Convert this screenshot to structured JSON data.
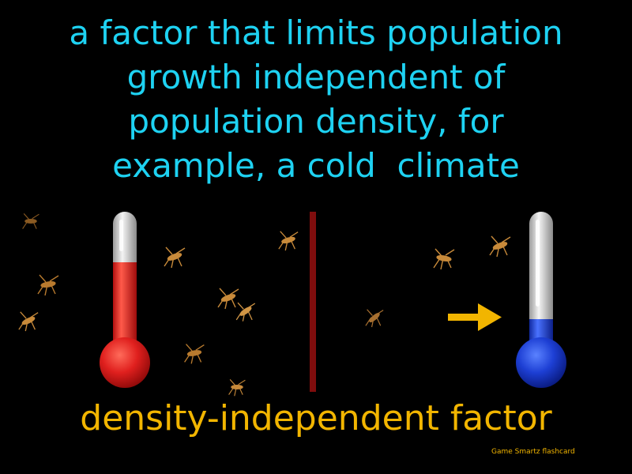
{
  "flashcard": {
    "definition_lines": [
      "a factor that limits population",
      "growth independent of",
      "population density, for",
      "example, a cold  climate"
    ],
    "term": "density-independent factor",
    "credit": "Game Smartz  flashcard"
  },
  "illustration": {
    "left_thermometer": {
      "icon": "warm-thermometer-icon",
      "fill_level": 0.55
    },
    "right_thermometer": {
      "icon": "cold-thermometer-icon",
      "fill_level": 0.2
    },
    "arrow": {
      "icon": "right-arrow-icon",
      "direction": "right"
    },
    "insects": {
      "icon": "mosquito-icon"
    }
  },
  "colors": {
    "definition_text": "#1ed2f2",
    "term_text": "#f2b500",
    "background": "#000000",
    "warm_liquid": "#e0201e",
    "cold_liquid": "#1d3fd4",
    "divider": "#7f0d0d",
    "arrow": "#f2b500"
  }
}
